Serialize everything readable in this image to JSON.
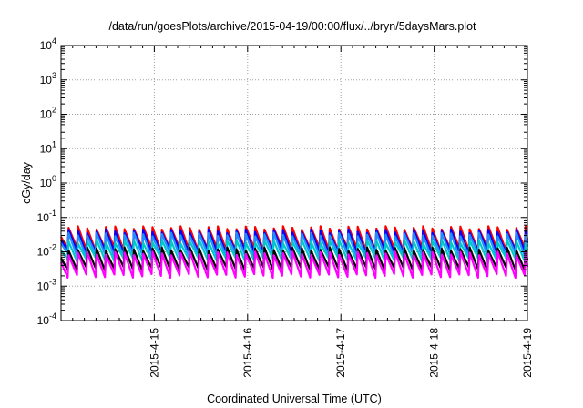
{
  "chart_data": {
    "type": "line",
    "title": "/data/run/goesPlots/archive/2015-04-19/00:00/flux/../bryn/5daysMars.plot",
    "xlabel": "Coordinated Universal Time (UTC)",
    "ylabel": "cGy/day",
    "y_scale": "log",
    "ylim": [
      0.0001,
      10000
    ],
    "xlim": [
      "2015-04-14 00:00",
      "2015-04-19 00:00"
    ],
    "grid": true,
    "x_ticks": [
      {
        "label": "2015-4-15",
        "value": "2015-04-15 00:00"
      },
      {
        "label": "2015-4-16",
        "value": "2015-04-16 00:00"
      },
      {
        "label": "2015-4-17",
        "value": "2015-04-17 00:00"
      },
      {
        "label": "2015-4-18",
        "value": "2015-04-18 00:00"
      },
      {
        "label": "2015-4-19",
        "value": "2015-04-19 00:00"
      }
    ],
    "y_ticks": [
      {
        "base": "10",
        "exp": "-4",
        "value": 0.0001
      },
      {
        "base": "10",
        "exp": "-3",
        "value": 0.001
      },
      {
        "base": "10",
        "exp": "-2",
        "value": 0.01
      },
      {
        "base": "10",
        "exp": "-1",
        "value": 0.1
      },
      {
        "base": "10",
        "exp": "0",
        "value": 1
      },
      {
        "base": "10",
        "exp": "1",
        "value": 10
      },
      {
        "base": "10",
        "exp": "2",
        "value": 100
      },
      {
        "base": "10",
        "exp": "3",
        "value": 1000
      },
      {
        "base": "10",
        "exp": "4",
        "value": 10000
      }
    ],
    "series_note": "sawtooth pattern repeating roughly every 2.4 hours; values are peak/trough levels",
    "period_hours": 2.4,
    "series": [
      {
        "color": "#ff0000",
        "peak": 0.05,
        "trough": 0.012
      },
      {
        "color": "#0000ff",
        "peak": 0.04,
        "trough": 0.01
      },
      {
        "color": "#1e90ff",
        "peak": 0.032,
        "trough": 0.008
      },
      {
        "color": "#00c8c8",
        "peak": 0.02,
        "trough": 0.006
      },
      {
        "color": "#000000",
        "peak": 0.012,
        "trough": 0.0032
      },
      {
        "color": "#ff00ff",
        "peak": 0.009,
        "trough": 0.002
      }
    ]
  }
}
